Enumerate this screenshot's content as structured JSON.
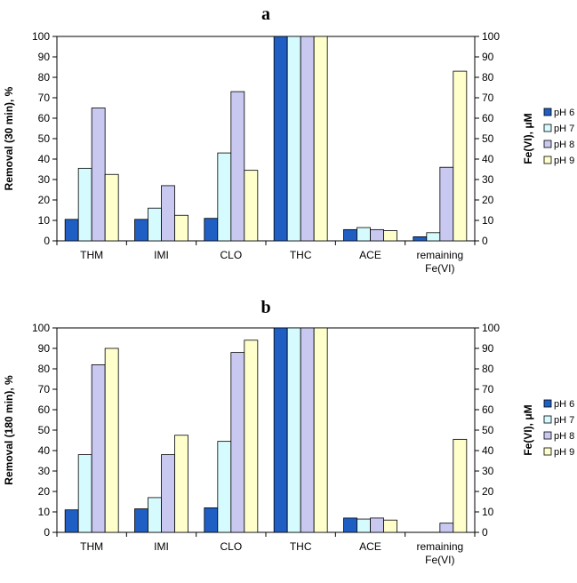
{
  "colors": {
    "pH 6": "#1f5fc4",
    "pH 7": "#d6fbff",
    "pH 8": "#c8c8f0",
    "pH 9": "#ffffcc"
  },
  "chart_data": [
    {
      "type": "bar",
      "title": "a",
      "ylabel": "Removal (30 min), %",
      "y2label": "Fe(VI), μM",
      "ylim": [
        0,
        100
      ],
      "y2lim": [
        0,
        100
      ],
      "yticks": [
        "0",
        "10",
        "20",
        "30",
        "40",
        "50",
        "60",
        "70",
        "80",
        "90",
        "100"
      ],
      "categories": [
        [
          "THM"
        ],
        [
          "IMI"
        ],
        [
          "CLO"
        ],
        [
          "THC"
        ],
        [
          "ACE"
        ],
        [
          "remaining",
          "Fe(VI)"
        ]
      ],
      "series": [
        {
          "name": "pH 6",
          "values": [
            10.5,
            10.5,
            11,
            100,
            5.5,
            2
          ]
        },
        {
          "name": "pH 7",
          "values": [
            35.5,
            16,
            43,
            100,
            6.5,
            4
          ]
        },
        {
          "name": "pH 8",
          "values": [
            65,
            27,
            73,
            100,
            5.5,
            36
          ]
        },
        {
          "name": "pH 9",
          "values": [
            32.5,
            12.5,
            34.5,
            100,
            5,
            83
          ]
        }
      ],
      "legend": "right"
    },
    {
      "type": "bar",
      "title": "b",
      "ylabel": "Removal (180 min), %",
      "y2label": "Fe(VI), μM",
      "ylim": [
        0,
        100
      ],
      "y2lim": [
        0,
        100
      ],
      "yticks": [
        "0",
        "10",
        "20",
        "30",
        "40",
        "50",
        "60",
        "70",
        "80",
        "90",
        "100"
      ],
      "categories": [
        [
          "THM"
        ],
        [
          "IMI"
        ],
        [
          "CLO"
        ],
        [
          "THC"
        ],
        [
          "ACE"
        ],
        [
          "remaining",
          "Fe(VI)"
        ]
      ],
      "series": [
        {
          "name": "pH 6",
          "values": [
            11,
            11.5,
            12,
            100,
            7,
            0
          ]
        },
        {
          "name": "pH 7",
          "values": [
            38,
            17,
            44.5,
            100,
            6.5,
            0
          ]
        },
        {
          "name": "pH 8",
          "values": [
            82,
            38,
            88,
            100,
            7,
            4.5
          ]
        },
        {
          "name": "pH 9",
          "values": [
            90,
            47.5,
            94,
            100,
            6,
            45.5
          ]
        }
      ],
      "legend": "right"
    }
  ]
}
